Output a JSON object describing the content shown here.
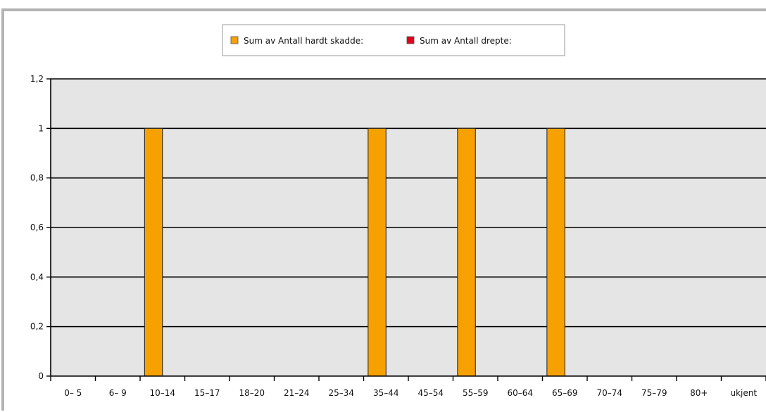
{
  "chart_data": {
    "type": "bar",
    "categories": [
      "0– 5",
      "6– 9",
      "10–14",
      "15–17",
      "18–20",
      "21–24",
      "25–34",
      "35–44",
      "45–54",
      "55–59",
      "60–64",
      "65–69",
      "70–74",
      "75–79",
      "80+",
      "ukjent"
    ],
    "series": [
      {
        "name": "Sum av Antall hardt skadde:",
        "color": "#F7A100",
        "values": [
          0,
          0,
          1,
          0,
          0,
          0,
          0,
          1,
          0,
          1,
          0,
          1,
          0,
          0,
          0,
          0
        ]
      },
      {
        "name": "Sum av Antall drepte:",
        "color": "#E3001B",
        "values": [
          0,
          0,
          0,
          0,
          0,
          0,
          0,
          0,
          0,
          0,
          0,
          0,
          0,
          0,
          0,
          0
        ]
      }
    ],
    "yticks": [
      "0",
      "0,2",
      "0,4",
      "0,6",
      "0,8",
      "1",
      "1,2"
    ],
    "ylim": [
      0,
      1.2
    ],
    "grid": true,
    "plot_background": "#E5E5E5",
    "legend_position": "top-center"
  }
}
